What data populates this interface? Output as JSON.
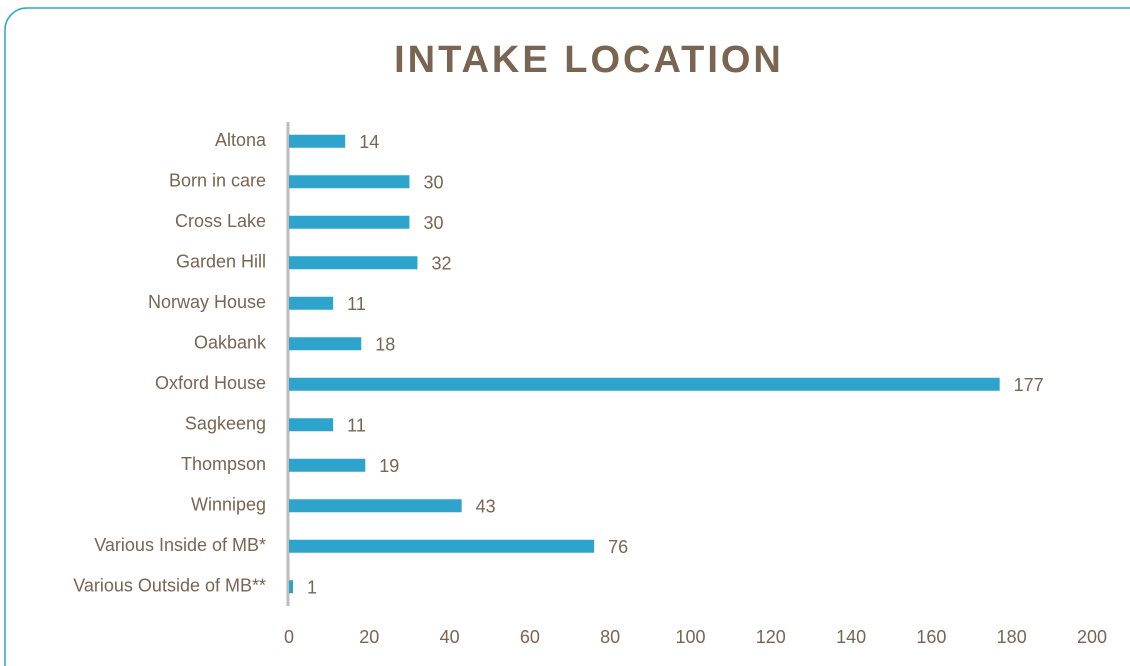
{
  "chart_data": {
    "type": "bar",
    "orientation": "horizontal",
    "title": "INTAKE LOCATION",
    "categories": [
      "Altona",
      "Born in care",
      "Cross Lake",
      "Garden Hill",
      "Norway House",
      "Oakbank",
      "Oxford House",
      "Sagkeeng",
      "Thompson",
      "Winnipeg",
      "Various Inside of MB*",
      "Various Outside of MB**"
    ],
    "values": [
      14,
      30,
      30,
      32,
      11,
      18,
      177,
      11,
      19,
      43,
      76,
      1
    ],
    "color": "#2ea3cc",
    "xlim": [
      0,
      200
    ],
    "xticks": [
      0,
      20,
      40,
      60,
      80,
      100,
      120,
      140,
      160,
      180,
      200
    ],
    "grid": false
  }
}
